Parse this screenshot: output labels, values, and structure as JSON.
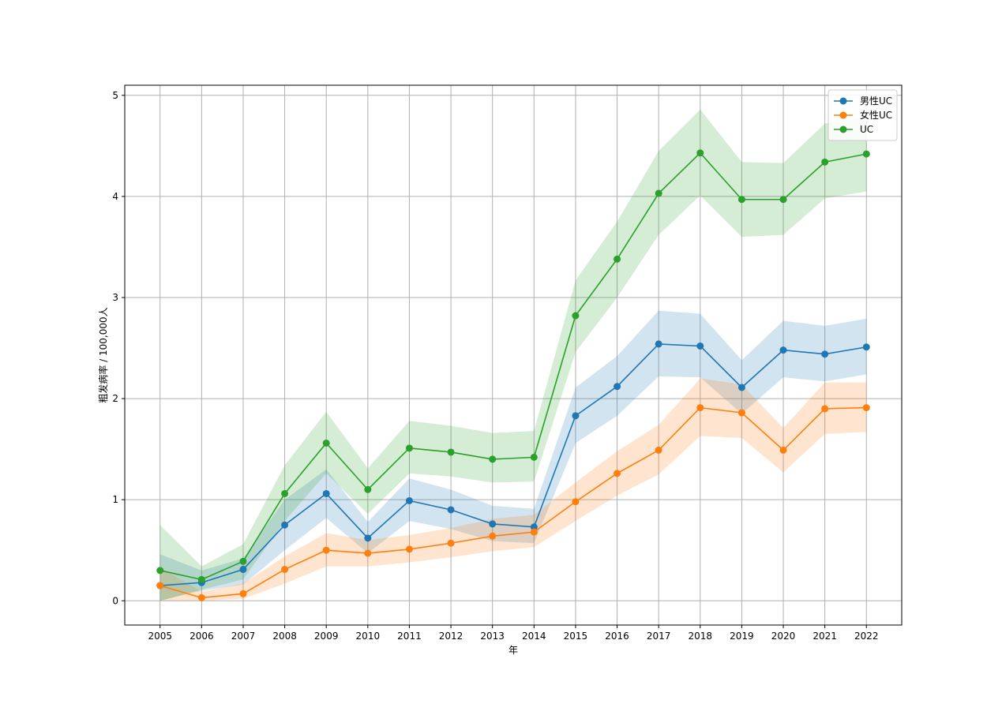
{
  "chart_data": {
    "type": "line",
    "title": "",
    "xlabel": "年",
    "ylabel": "粗发病率 / 100,000人",
    "x": [
      2005,
      2006,
      2007,
      2008,
      2009,
      2010,
      2011,
      2012,
      2013,
      2014,
      2015,
      2016,
      2017,
      2018,
      2019,
      2020,
      2021,
      2022
    ],
    "xlim": [
      2004.15,
      2022.85
    ],
    "ylim": [
      -0.24,
      5.1
    ],
    "yticks": [
      0,
      1,
      2,
      3,
      4,
      5
    ],
    "grid": true,
    "legend_position": "top-right",
    "series": [
      {
        "name": "男性UC",
        "color": "#1f77b4",
        "values": [
          0.15,
          0.18,
          0.31,
          0.75,
          1.06,
          0.62,
          0.99,
          0.9,
          0.76,
          0.73,
          1.83,
          2.12,
          2.54,
          2.52,
          2.11,
          2.48,
          2.44,
          2.51
        ],
        "lower": [
          0.0,
          0.1,
          0.16,
          0.5,
          0.82,
          0.47,
          0.79,
          0.71,
          0.59,
          0.57,
          1.56,
          1.83,
          2.22,
          2.21,
          1.85,
          2.21,
          2.17,
          2.24
        ],
        "upper": [
          0.46,
          0.3,
          0.42,
          1.0,
          1.3,
          0.78,
          1.21,
          1.1,
          0.94,
          0.91,
          2.11,
          2.42,
          2.87,
          2.84,
          2.38,
          2.77,
          2.72,
          2.79
        ]
      },
      {
        "name": "女性UC",
        "color": "#ff7f0e",
        "values": [
          0.15,
          0.03,
          0.07,
          0.31,
          0.5,
          0.47,
          0.51,
          0.57,
          0.64,
          0.68,
          0.98,
          1.26,
          1.49,
          1.91,
          1.86,
          1.49,
          1.9,
          1.91
        ],
        "lower": [
          0.0,
          0.0,
          0.02,
          0.17,
          0.34,
          0.34,
          0.38,
          0.43,
          0.49,
          0.53,
          0.79,
          1.04,
          1.25,
          1.63,
          1.61,
          1.27,
          1.65,
          1.67
        ],
        "upper": [
          0.33,
          0.09,
          0.17,
          0.44,
          0.67,
          0.6,
          0.65,
          0.72,
          0.81,
          0.85,
          1.17,
          1.48,
          1.74,
          2.2,
          2.14,
          1.71,
          2.16,
          2.16
        ]
      },
      {
        "name": "UC",
        "color": "#2ca02c",
        "values": [
          0.3,
          0.21,
          0.39,
          1.06,
          1.56,
          1.1,
          1.51,
          1.47,
          1.4,
          1.42,
          2.82,
          3.38,
          4.03,
          4.43,
          3.97,
          3.97,
          4.34,
          4.42
        ],
        "lower": [
          0.0,
          0.11,
          0.21,
          0.79,
          1.26,
          0.86,
          1.26,
          1.23,
          1.17,
          1.18,
          2.46,
          3.0,
          3.62,
          4.01,
          3.6,
          3.62,
          3.98,
          4.05
        ],
        "upper": [
          0.75,
          0.34,
          0.56,
          1.34,
          1.87,
          1.31,
          1.78,
          1.73,
          1.66,
          1.68,
          3.17,
          3.75,
          4.45,
          4.86,
          4.34,
          4.33,
          4.72,
          4.79
        ]
      }
    ]
  }
}
